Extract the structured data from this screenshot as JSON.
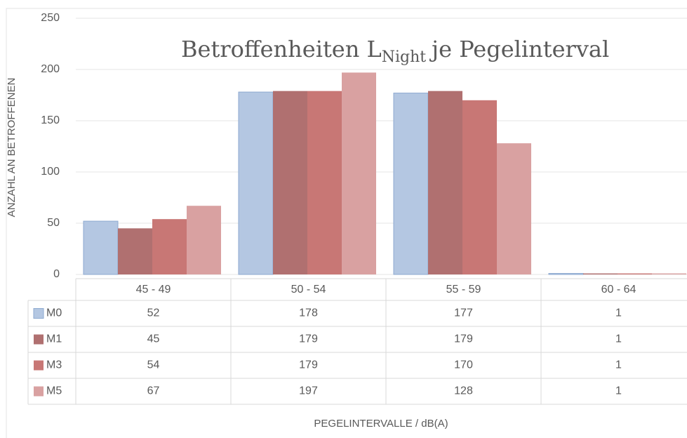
{
  "chart_data": {
    "type": "bar",
    "title": "Betroffenheiten L",
    "title_subscript": "Night",
    "title_suffix": "je Pegelinterval",
    "y_label": "ANZAHL AN BETROFFENEN",
    "x_label": "PEGELINTERVALLE / dB(A)",
    "categories": [
      "45 - 49",
      "50 - 54",
      "55 - 59",
      "60 - 64"
    ],
    "series": [
      {
        "name": "M0",
        "color": "#b4c7e2",
        "values": [
          52,
          178,
          177,
          1
        ]
      },
      {
        "name": "M1",
        "color": "#b07070",
        "values": [
          45,
          179,
          179,
          1
        ]
      },
      {
        "name": "M3",
        "color": "#c87775",
        "values": [
          54,
          179,
          170,
          1
        ]
      },
      {
        "name": "M5",
        "color": "#d9a1a1",
        "values": [
          67,
          197,
          128,
          1
        ]
      }
    ],
    "ylim": [
      0,
      250
    ],
    "yticks": [
      0,
      50,
      100,
      150,
      200,
      250
    ],
    "grid": true,
    "data_table": true
  }
}
